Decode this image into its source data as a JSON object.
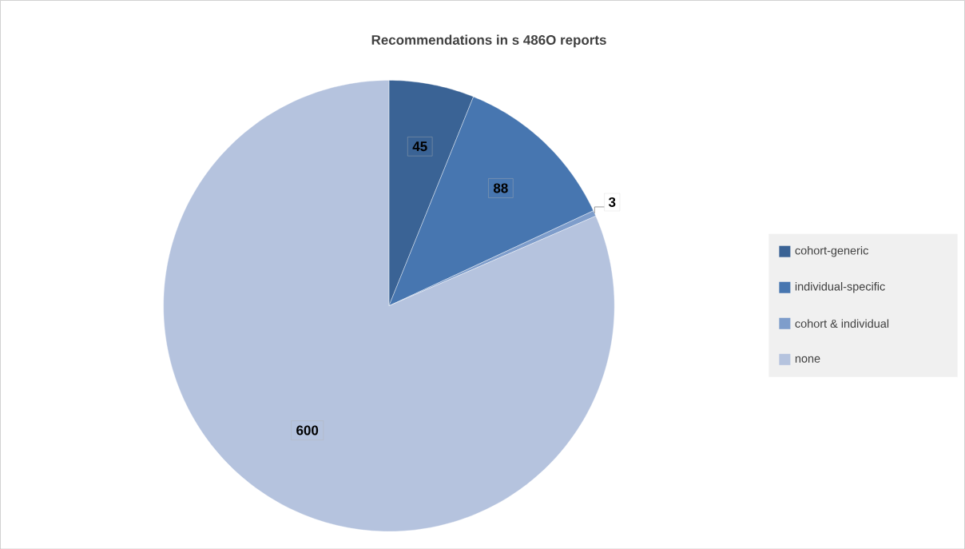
{
  "chart_data": {
    "type": "pie",
    "title": "Recommendations in s 486O reports",
    "categories": [
      "cohort-generic",
      "individual-specific",
      "cohort & individual",
      "none"
    ],
    "values": [
      45,
      88,
      3,
      600
    ],
    "colors": [
      "#3a6395",
      "#4776b0",
      "#7e9dcb",
      "#b5c3de"
    ],
    "data_labels": true,
    "legend": "right"
  }
}
